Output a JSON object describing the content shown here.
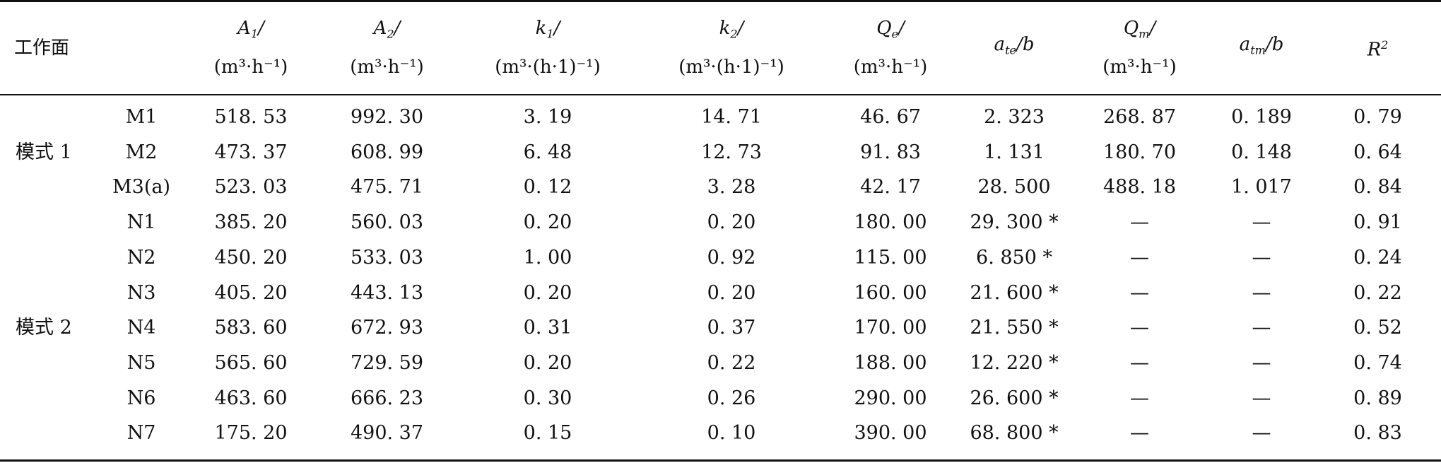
{
  "table": {
    "header": {
      "workface": "工作面",
      "A1": {
        "symbol": "A",
        "sub": "1",
        "slash": "/",
        "unit": "(m³·h⁻¹)"
      },
      "A2": {
        "symbol": "A",
        "sub": "2",
        "slash": "/",
        "unit": "(m³·h⁻¹)"
      },
      "k1": {
        "symbol": "k",
        "sub": "1",
        "slash": "/",
        "unit": "(m³·(h·1)⁻¹)"
      },
      "k2": {
        "symbol": "k",
        "sub": "2",
        "slash": "/",
        "unit": "(m³·(h·1)⁻¹)"
      },
      "Qe": {
        "symbol": "Q",
        "sub": "e",
        "slash": "/",
        "unit": "(m³·h⁻¹)"
      },
      "ate": {
        "symbol": "a",
        "sub": "te",
        "slash": "/b"
      },
      "Qm": {
        "symbol": "Q",
        "sub": "m",
        "slash": "/",
        "unit": "(m³·h⁻¹)"
      },
      "atm": {
        "symbol": "a",
        "sub": "tm",
        "slash": "/b"
      },
      "R2": {
        "symbol": "R",
        "sup": "2"
      }
    },
    "groups": [
      {
        "label": "模式 1"
      },
      {
        "label": "模式 2"
      }
    ],
    "rows": [
      {
        "name": "M1",
        "A1": "518. 53",
        "A2": "992. 30",
        "k1": "3. 19",
        "k2": "14. 71",
        "Qe": "46. 67",
        "ate": "2. 323",
        "Qm": "268. 87",
        "atm": "0. 189",
        "R2": "0. 79"
      },
      {
        "name": "M2",
        "A1": "473. 37",
        "A2": "608. 99",
        "k1": "6. 48",
        "k2": "12. 73",
        "Qe": "91. 83",
        "ate": "1. 131",
        "Qm": "180. 70",
        "atm": "0. 148",
        "R2": "0. 64"
      },
      {
        "name": "M3(a)",
        "A1": "523. 03",
        "A2": "475. 71",
        "k1": "0. 12",
        "k2": "3. 28",
        "Qe": "42. 17",
        "ate": "28. 500",
        "Qm": "488. 18",
        "atm": "1. 017",
        "R2": "0. 84"
      },
      {
        "name": "N1",
        "A1": "385. 20",
        "A2": "560. 03",
        "k1": "0. 20",
        "k2": "0. 20",
        "Qe": "180. 00",
        "ate": "29. 300 *",
        "Qm": "—",
        "atm": "—",
        "R2": "0. 91"
      },
      {
        "name": "N2",
        "A1": "450. 20",
        "A2": "533. 03",
        "k1": "1. 00",
        "k2": "0. 92",
        "Qe": "115. 00",
        "ate": "6. 850 *",
        "Qm": "—",
        "atm": "—",
        "R2": "0. 24"
      },
      {
        "name": "N3",
        "A1": "405. 20",
        "A2": "443. 13",
        "k1": "0. 20",
        "k2": "0. 20",
        "Qe": "160. 00",
        "ate": "21. 600 *",
        "Qm": "—",
        "atm": "—",
        "R2": "0. 22"
      },
      {
        "name": "N4",
        "A1": "583. 60",
        "A2": "672. 93",
        "k1": "0. 31",
        "k2": "0. 37",
        "Qe": "170. 00",
        "ate": "21. 550 *",
        "Qm": "—",
        "atm": "—",
        "R2": "0. 52"
      },
      {
        "name": "N5",
        "A1": "565. 60",
        "A2": "729. 59",
        "k1": "0. 20",
        "k2": "0. 22",
        "Qe": "188. 00",
        "ate": "12. 220 *",
        "Qm": "—",
        "atm": "—",
        "R2": "0. 74"
      },
      {
        "name": "N6",
        "A1": "463. 60",
        "A2": "666. 23",
        "k1": "0. 30",
        "k2": "0. 26",
        "Qe": "290. 00",
        "ate": "26. 600 *",
        "Qm": "—",
        "atm": "—",
        "R2": "0. 89"
      },
      {
        "name": "N7",
        "A1": "175. 20",
        "A2": "490. 37",
        "k1": "0. 15",
        "k2": "0. 10",
        "Qe": "390. 00",
        "ate": "68. 800 *",
        "Qm": "—",
        "atm": "—",
        "R2": "0. 83"
      }
    ]
  }
}
